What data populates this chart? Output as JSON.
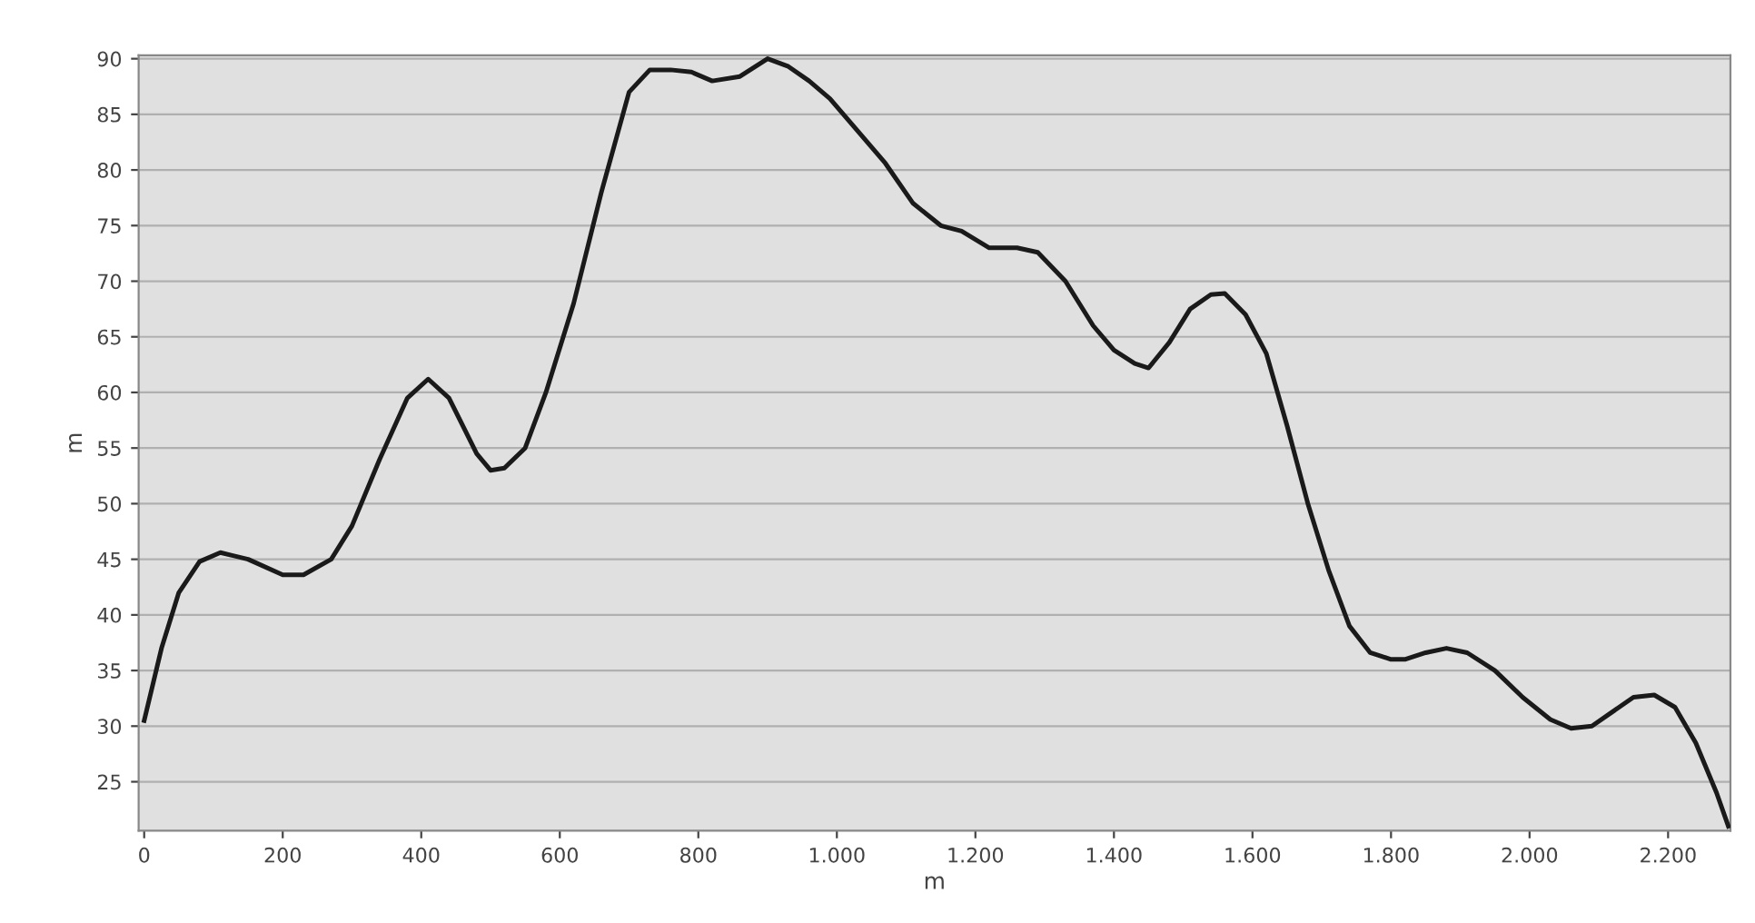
{
  "chart_data": {
    "type": "line",
    "xlabel": "m",
    "ylabel": "m",
    "x": [
      0,
      25,
      50,
      80,
      110,
      150,
      200,
      230,
      270,
      300,
      340,
      380,
      410,
      440,
      480,
      500,
      520,
      550,
      580,
      620,
      660,
      700,
      730,
      760,
      790,
      820,
      860,
      880,
      900,
      930,
      960,
      990,
      1030,
      1070,
      1110,
      1150,
      1180,
      1220,
      1260,
      1290,
      1330,
      1370,
      1400,
      1430,
      1450,
      1480,
      1510,
      1540,
      1560,
      1590,
      1620,
      1650,
      1680,
      1710,
      1740,
      1770,
      1800,
      1820,
      1850,
      1880,
      1910,
      1950,
      1990,
      2030,
      2060,
      2090,
      2120,
      2150,
      2180,
      2210,
      2240,
      2270,
      2287
    ],
    "series": [
      {
        "color": "#1a1a1a",
        "values": [
          30.5,
          37,
          42,
          44.8,
          45.6,
          45,
          43.6,
          43.6,
          45,
          48,
          54,
          59.5,
          61.2,
          59.5,
          54.5,
          53,
          53.2,
          55,
          60,
          68,
          78,
          87,
          89,
          89,
          88.8,
          88,
          88.4,
          89.2,
          90,
          89.3,
          88,
          86.4,
          83.5,
          80.6,
          77,
          75,
          74.5,
          73,
          73,
          72.6,
          70,
          66,
          63.8,
          62.6,
          62.2,
          64.5,
          67.5,
          68.8,
          68.9,
          67,
          63.5,
          57,
          50,
          44,
          39,
          36.6,
          36,
          36,
          36.6,
          37,
          36.6,
          35,
          32.6,
          30.6,
          29.8,
          30,
          31.3,
          32.6,
          32.8,
          31.7,
          28.5,
          24,
          21
        ]
      }
    ],
    "xlim": [
      -8,
      2290
    ],
    "ylim": [
      20.6,
      90.3
    ],
    "xticks": [
      0,
      200,
      400,
      600,
      800,
      {
        "value": 1000,
        "label": "1.000"
      },
      {
        "value": 1200,
        "label": "1.200"
      },
      {
        "value": 1400,
        "label": "1.400"
      },
      {
        "value": 1600,
        "label": "1.600"
      },
      {
        "value": 1800,
        "label": "1.800"
      },
      {
        "value": 2000,
        "label": "2.000"
      },
      {
        "value": 2200,
        "label": "2.200"
      }
    ],
    "yticks": [
      25,
      30,
      35,
      40,
      45,
      50,
      55,
      60,
      65,
      70,
      75,
      80,
      85,
      90
    ],
    "grid": "y",
    "marker": "none",
    "line_style": "solid",
    "legend": false
  }
}
